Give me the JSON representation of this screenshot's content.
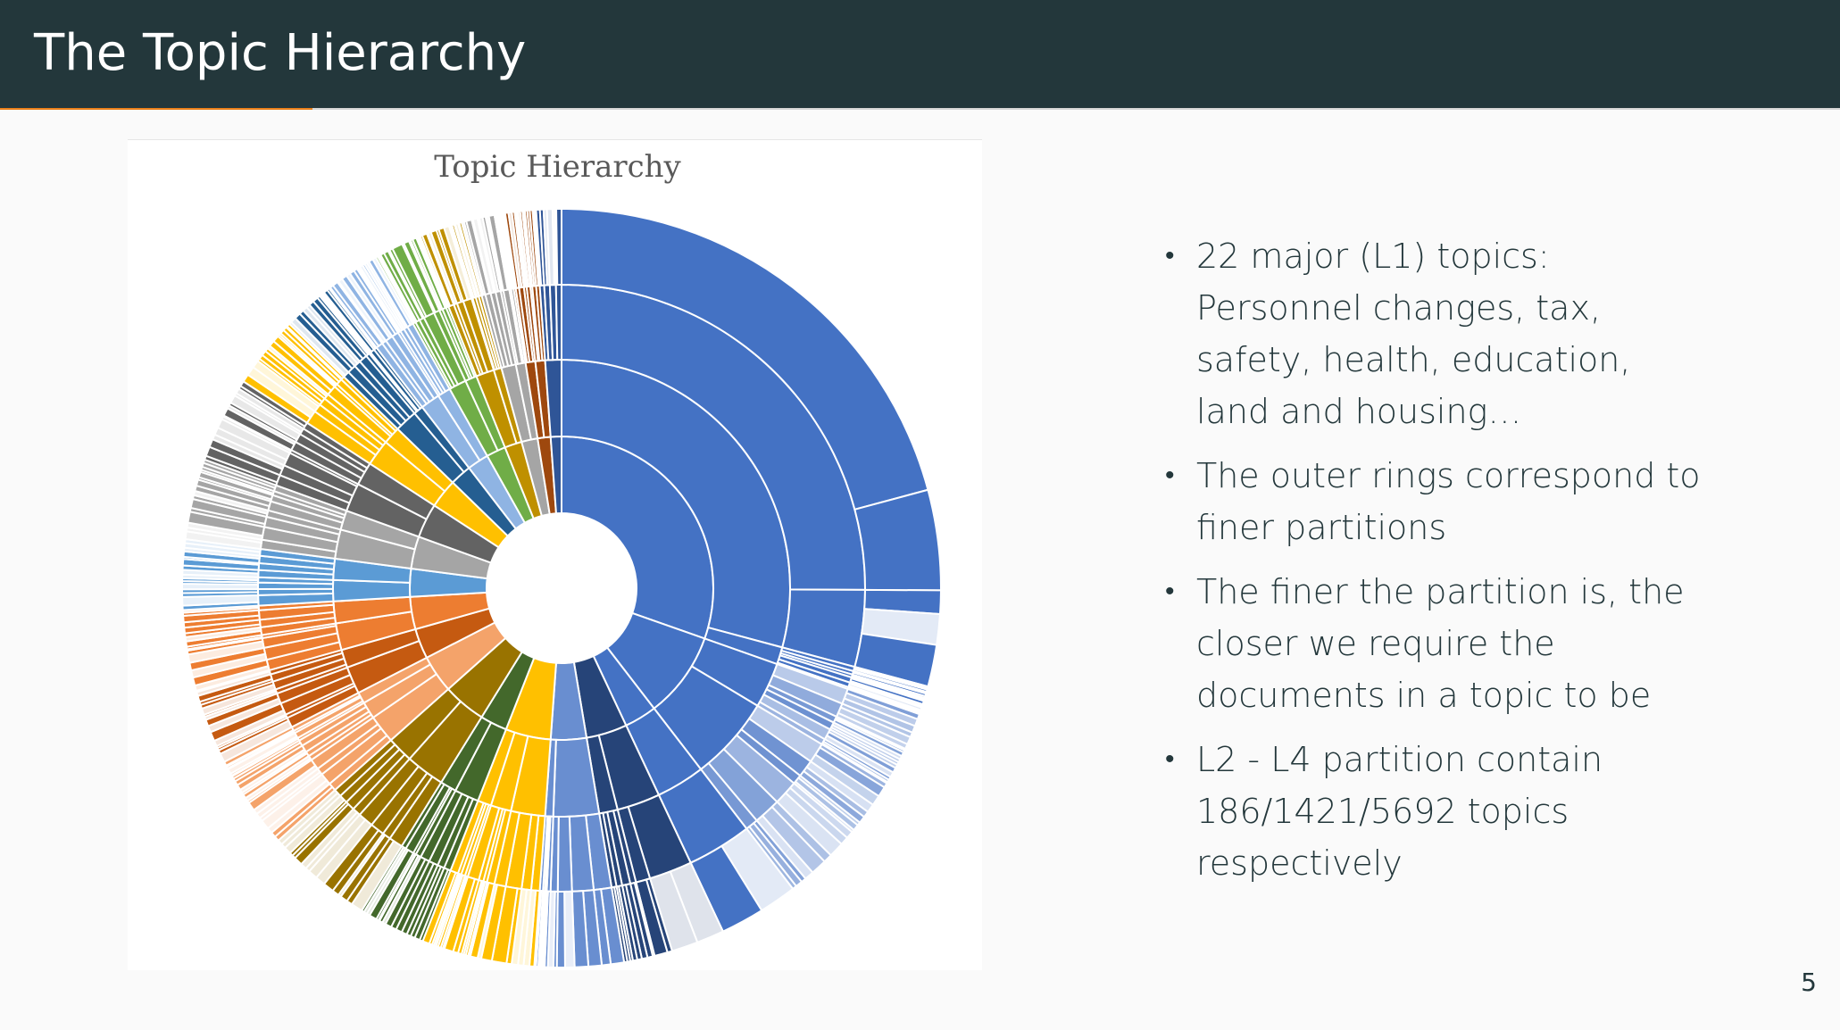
{
  "header": {
    "title": "The Topic Hierarchy"
  },
  "progress": {
    "fraction": 0.17,
    "color": "#eb811b"
  },
  "bullets": [
    "22 major (L1) topics: Personnel changes, tax, safety, health, education, land and housing…",
    "The outer rings correspond to finer partitions",
    "The finer the partition is, the closer we require the documents in a topic to be",
    "L2 - L4 partition contain 186/1421/5692 topics respectively"
  ],
  "bullet_icon": "•",
  "page_number": "5",
  "chart_data": {
    "type": "sunburst",
    "title": "Topic Hierarchy",
    "levels": [
      "L1",
      "L2",
      "L3",
      "L4"
    ],
    "ring_counts": [
      22,
      186,
      1421,
      5692
    ],
    "start_angle_deg": 0,
    "direction": "clockwise",
    "l1_topics": [
      {
        "share": 0.265,
        "color": "#4472c4",
        "children": [
          0.96,
          0.04
        ],
        "grandchildren": [
          0.86,
          0.14
        ],
        "outer": [
          0.83,
          0.17
        ]
      },
      {
        "share": 0.08,
        "color": "#4472c4",
        "children": [
          0.35,
          0.65
        ],
        "outer_fade": true
      },
      {
        "share": 0.03,
        "color": "#4472c4",
        "children": [
          1.0
        ],
        "grandchildren": [
          1.0
        ]
      },
      {
        "share": 0.038,
        "color": "#264478",
        "children": [
          0.7,
          0.3
        ],
        "grandchildren": [
          0.75,
          0.25
        ]
      },
      {
        "share": 0.033,
        "color": "#698ed0",
        "children": [
          0.85,
          0.15
        ]
      },
      {
        "share": 0.042,
        "color": "#ffc000",
        "children": [
          0.5,
          0.3,
          0.2
        ]
      },
      {
        "share": 0.025,
        "color": "#43682b",
        "children": [
          0.6,
          0.4
        ]
      },
      {
        "share": 0.04,
        "color": "#997300",
        "children": [
          0.6,
          0.4
        ]
      },
      {
        "share": 0.035,
        "color": "#f4a36a",
        "children": [
          0.5,
          0.3,
          0.2
        ]
      },
      {
        "share": 0.028,
        "color": "#c55a11",
        "children": [
          0.6,
          0.4
        ]
      },
      {
        "share": 0.03,
        "color": "#ed7d31",
        "children": [
          0.55,
          0.45
        ]
      },
      {
        "share": 0.026,
        "color": "#5b9bd5",
        "children": [
          0.5,
          0.5
        ]
      },
      {
        "share": 0.03,
        "color": "#a5a5a5",
        "children": [
          0.6,
          0.4
        ]
      },
      {
        "share": 0.032,
        "color": "#636363",
        "children": [
          0.55,
          0.45
        ]
      },
      {
        "share": 0.027,
        "color": "#ffc000",
        "children": [
          0.6,
          0.4
        ]
      },
      {
        "share": 0.02,
        "color": "#255e91",
        "children": [
          0.7,
          0.3
        ]
      },
      {
        "share": 0.02,
        "color": "#8fb4e3",
        "children": [
          0.6,
          0.4
        ]
      },
      {
        "share": 0.018,
        "color": "#70ad47",
        "children": [
          0.6,
          0.4
        ]
      },
      {
        "share": 0.016,
        "color": "#bf9000",
        "children": [
          0.7,
          0.3
        ]
      },
      {
        "share": 0.015,
        "color": "#a5a5a5",
        "children": [
          0.6,
          0.4
        ]
      },
      {
        "share": 0.012,
        "color": "#9e480e",
        "children": [
          0.5,
          0.5
        ]
      },
      {
        "share": 0.01,
        "color": "#2f5597",
        "children": [
          1.0
        ]
      }
    ]
  }
}
